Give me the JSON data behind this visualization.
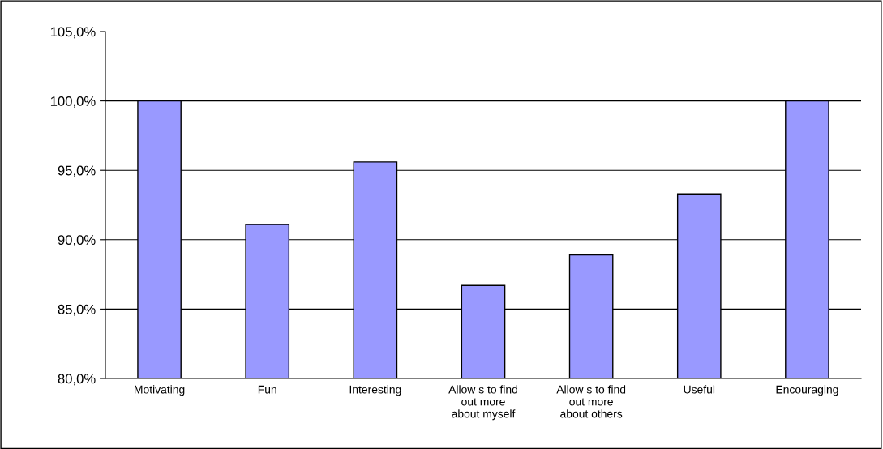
{
  "chart_data": {
    "type": "bar",
    "categories": [
      "Motivating",
      "Fun",
      "Interesting",
      "Allow s to find\nout more\nabout myself",
      "Allow s to find\nout more\nabout others",
      "Useful",
      "Encouraging"
    ],
    "values": [
      100,
      91.1,
      95.6,
      86.7,
      88.9,
      93.3,
      100
    ],
    "color": "#9999ff",
    "ylim": [
      80,
      105
    ],
    "yticks": [
      {
        "value": 80,
        "label": "80,0%"
      },
      {
        "value": 85,
        "label": "85,0%"
      },
      {
        "value": 90,
        "label": "90,0%"
      },
      {
        "value": 95,
        "label": "95,0%"
      },
      {
        "value": 100,
        "label": "100,0%"
      },
      {
        "value": 105,
        "label": "105,0%"
      }
    ],
    "grid": "y"
  }
}
